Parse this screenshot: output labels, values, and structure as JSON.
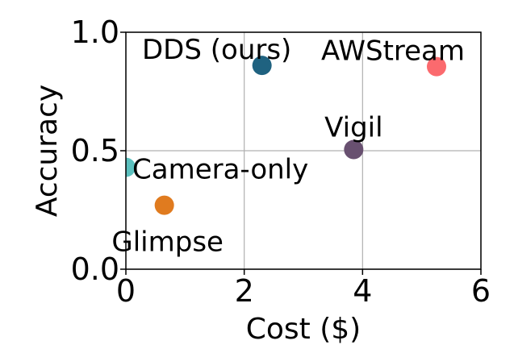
{
  "chart_data": {
    "type": "scatter",
    "title": "",
    "xlabel": "Cost ($)",
    "ylabel": "Accuracy",
    "xlim": [
      0,
      6
    ],
    "ylim": [
      0,
      1
    ],
    "xticks": [
      0,
      2,
      4,
      6
    ],
    "xtick_labels": [
      "0",
      "2",
      "4",
      "6"
    ],
    "yticks": [
      0,
      0.5,
      1
    ],
    "ytick_labels": [
      "0.0",
      "0.5",
      "1.0"
    ],
    "grid": true,
    "points": [
      {
        "label": "Camera-only",
        "x": 0.0,
        "y": 0.43,
        "color": "#5bc0be"
      },
      {
        "label": "Glimpse",
        "x": 0.65,
        "y": 0.27,
        "color": "#e07b1f"
      },
      {
        "label": "DDS (ours)",
        "x": 2.3,
        "y": 0.86,
        "color": "#1f6280"
      },
      {
        "label": "Vigil",
        "x": 3.85,
        "y": 0.505,
        "color": "#685070"
      },
      {
        "label": "AWStream",
        "x": 5.25,
        "y": 0.855,
        "color": "#fb6a6e"
      }
    ]
  }
}
